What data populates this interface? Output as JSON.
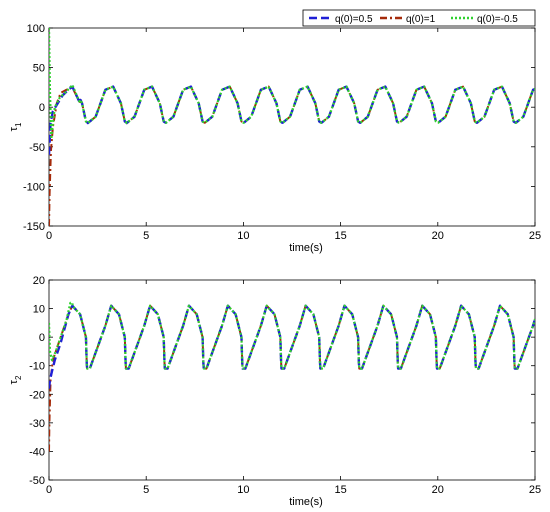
{
  "chart_data": [
    {
      "type": "line",
      "ylabel": "τ",
      "ylabel_sub": "1",
      "xlabel": "time(s)",
      "xlim": [
        0,
        25
      ],
      "ylim": [
        -150,
        100
      ],
      "xticks": [
        0,
        5,
        10,
        15,
        20,
        25
      ],
      "yticks": [
        -150,
        -100,
        -50,
        0,
        50,
        100
      ],
      "tick_labels_x": [
        "0",
        "5",
        "10",
        "15",
        "20",
        "25"
      ],
      "tick_labels_y": [
        "-150",
        "-100",
        "-50",
        "0",
        "50",
        "100"
      ],
      "grid": false,
      "legend": {
        "placement": "top-right",
        "entries": [
          {
            "label": "q(0)=0.5",
            "color": "#1f1fd6",
            "style": "dashed"
          },
          {
            "label": "q(0)=1",
            "color": "#a52a0a",
            "style": "dashdot"
          },
          {
            "label": "q(0)=-0.5",
            "color": "#2fd12f",
            "style": "dotted"
          }
        ]
      },
      "periodic_signal": {
        "period": 2.0,
        "phase_peak": 1.0,
        "x": [
          0,
          0.4,
          0.9,
          1.3,
          1.7,
          1.9,
          2.15,
          3.0
        ],
        "y": [
          -20,
          -12,
          22,
          26,
          5,
          -18,
          -22,
          -20
        ]
      },
      "series": [
        {
          "name": "q(0)=0.5",
          "color": "#1f1fd6",
          "x": [
            0,
            0.08,
            0.2,
            0.45,
            0.7,
            1.0,
            1.2,
            1.6
          ],
          "y": [
            -60,
            -20,
            -5,
            5,
            15,
            22,
            26,
            5
          ]
        },
        {
          "name": "q(0)=1",
          "color": "#a52a0a",
          "x": [
            0,
            0.03,
            0.1,
            0.2,
            0.4,
            0.6,
            0.9,
            1.2,
            1.6
          ],
          "y": [
            -150,
            -110,
            -55,
            -25,
            5,
            18,
            22,
            25,
            5
          ]
        },
        {
          "name": "q(0)=-0.5",
          "color": "#2fd12f",
          "x": [
            0,
            0.05,
            0.12,
            0.2,
            0.3,
            0.55,
            0.9,
            1.2,
            1.6
          ],
          "y": [
            100,
            20,
            -40,
            -20,
            0,
            12,
            20,
            28,
            5
          ]
        }
      ]
    },
    {
      "type": "line",
      "ylabel": "τ",
      "ylabel_sub": "2",
      "xlabel": "time(s)",
      "xlim": [
        0,
        25
      ],
      "ylim": [
        -50,
        20
      ],
      "xticks": [
        0,
        5,
        10,
        15,
        20,
        25
      ],
      "yticks": [
        -50,
        -40,
        -30,
        -20,
        -10,
        0,
        10,
        20
      ],
      "tick_labels_x": [
        "0",
        "5",
        "10",
        "15",
        "20",
        "25"
      ],
      "tick_labels_y": [
        "-50",
        "-40",
        "-30",
        "-20",
        "-10",
        "0",
        "10",
        "20"
      ],
      "grid": false,
      "periodic_signal": {
        "period": 2.0,
        "phase_peak": 1.2,
        "x": [
          0,
          0.1,
          0.9,
          1.2,
          1.6,
          1.9,
          1.95
        ],
        "y": [
          -11,
          -11,
          4,
          11,
          8,
          0,
          -11
        ]
      },
      "series": [
        {
          "name": "q(0)=0.5",
          "color": "#1f1fd6",
          "x": [
            0,
            0.05,
            0.15,
            0.3,
            0.6,
            1.0,
            1.2
          ],
          "y": [
            -18,
            -15,
            -12,
            -8,
            -2,
            8,
            11
          ]
        },
        {
          "name": "q(0)=1",
          "color": "#a52a0a",
          "x": [
            0,
            0.02,
            0.08,
            0.2,
            0.4,
            0.7,
            1.0,
            1.2
          ],
          "y": [
            -40,
            -30,
            -15,
            -8,
            -4,
            2,
            8,
            11
          ]
        },
        {
          "name": "q(0)=-0.5",
          "color": "#2fd12f",
          "x": [
            0,
            0.05,
            0.15,
            0.35,
            0.6,
            0.9,
            1.1,
            1.2
          ],
          "y": [
            5,
            -5,
            -8,
            -5,
            0,
            6,
            12,
            12
          ]
        }
      ]
    }
  ]
}
